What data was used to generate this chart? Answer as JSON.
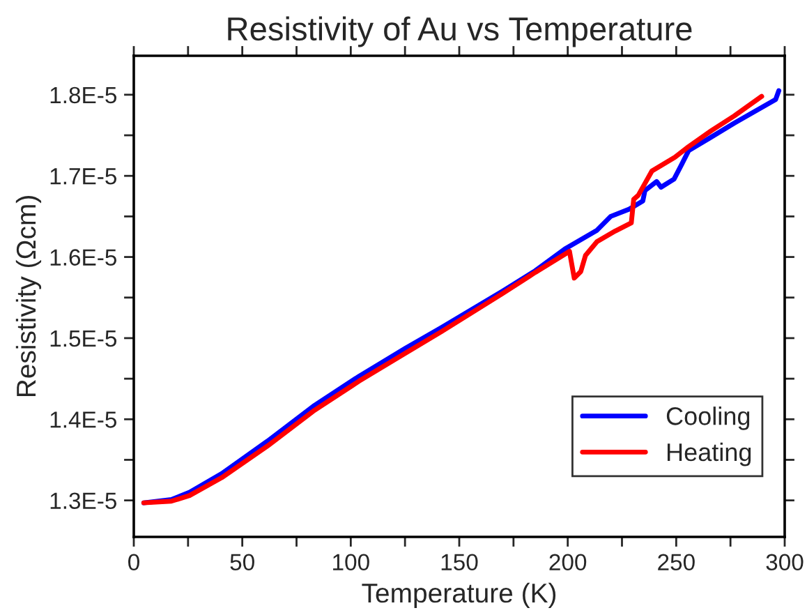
{
  "chart_data": {
    "type": "line",
    "title": "Resistivity of Au vs Temperature",
    "xlabel": "Temperature (K)",
    "ylabel": "Resistivity (Ωcm)",
    "xlim": [
      0,
      300
    ],
    "ylim": [
      1.255e-05,
      1.848e-05
    ],
    "xticks": [
      0,
      {
        "value": 25,
        "label": null
      },
      50,
      {
        "value": 75,
        "label": null
      },
      100,
      {
        "value": 125,
        "label": null
      },
      150,
      {
        "value": 175,
        "label": null
      },
      200,
      {
        "value": 225,
        "label": null
      },
      250,
      {
        "value": 275,
        "label": null
      },
      300
    ],
    "yticks": [
      {
        "value": 1.3e-05,
        "label": "1.3E-5"
      },
      {
        "value": 1.35e-05,
        "label": null
      },
      {
        "value": 1.4e-05,
        "label": "1.4E-5"
      },
      {
        "value": 1.45e-05,
        "label": null
      },
      {
        "value": 1.5e-05,
        "label": "1.5E-5"
      },
      {
        "value": 1.55e-05,
        "label": null
      },
      {
        "value": 1.6e-05,
        "label": "1.6E-5"
      },
      {
        "value": 1.65e-05,
        "label": null
      },
      {
        "value": 1.7e-05,
        "label": "1.7E-5"
      },
      {
        "value": 1.75e-05,
        "label": null
      },
      {
        "value": 1.8e-05,
        "label": "1.8E-5"
      }
    ],
    "grid": false,
    "legend": "bottom right",
    "marker": "none",
    "line_style": "solid",
    "series": [
      {
        "name": "Cooling",
        "color": "#0000ff",
        "x": [
          4.6,
          17.3,
          25.7,
          40.5,
          61.6,
          82.7,
          103.8,
          124.9,
          141.8,
          170,
          185,
          198.7,
          213.5,
          219.8,
          228.3,
          234.6,
          235.6,
          241,
          243,
          249,
          252.5,
          255.7,
          276.8,
          295.8,
          297.3
        ],
        "values": [
          1.297e-05,
          1.301e-05,
          1.31e-05,
          1.333e-05,
          1.373e-05,
          1.416e-05,
          1.453e-05,
          1.487e-05,
          1.513e-05,
          1.558e-05,
          1.583e-05,
          1.61e-05,
          1.633e-05,
          1.65e-05,
          1.659e-05,
          1.669e-05,
          1.682e-05,
          1.693e-05,
          1.686e-05,
          1.696e-05,
          1.714e-05,
          1.731e-05,
          1.765e-05,
          1.794e-05,
          1.805e-05
        ]
      },
      {
        "name": "Heating",
        "color": "#ff0000",
        "x": [
          4.6,
          17.3,
          25.7,
          40.5,
          61.6,
          82.7,
          103.8,
          124.9,
          141.8,
          170,
          185,
          200.8,
          203,
          206,
          208.2,
          213.5,
          221.9,
          229.3,
          230.4,
          232.5,
          236.7,
          238.8,
          249.4,
          255.7,
          266.3,
          276.8,
          289.4
        ],
        "values": [
          1.297e-05,
          1.299e-05,
          1.306e-05,
          1.328e-05,
          1.367e-05,
          1.41e-05,
          1.447e-05,
          1.481e-05,
          1.508e-05,
          1.555e-05,
          1.581e-05,
          1.607e-05,
          1.574e-05,
          1.582e-05,
          1.602e-05,
          1.619e-05,
          1.632e-05,
          1.642e-05,
          1.671e-05,
          1.676e-05,
          1.696e-05,
          1.706e-05,
          1.723e-05,
          1.736e-05,
          1.756e-05,
          1.774e-05,
          1.798e-05
        ]
      }
    ]
  }
}
